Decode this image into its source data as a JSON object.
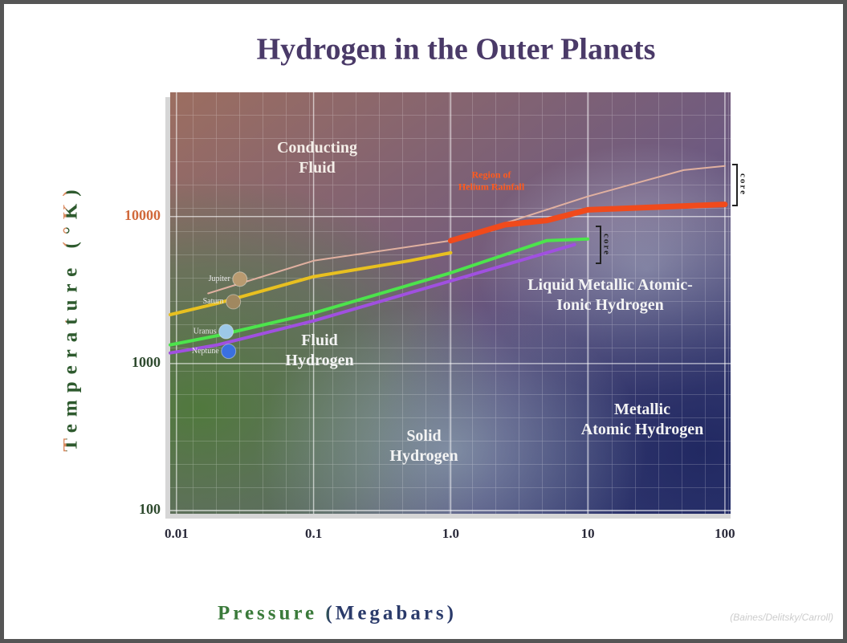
{
  "chart_data": {
    "type": "line",
    "title": "Hydrogen in the Outer Planets",
    "x_label": "Pressure (Megabars)",
    "y_label": "Temperature (°K)",
    "xlog": true,
    "ylog": true,
    "grid": true,
    "xlim": [
      0.009,
      110
    ],
    "ylim": [
      95,
      70000
    ],
    "xticks": [
      0.01,
      0.1,
      {
        "value": 1,
        "label": "1.0"
      },
      10,
      100
    ],
    "yticks": [
      100,
      1000,
      10000
    ],
    "series": [
      {
        "color": "#e0b0a0",
        "width": 2,
        "x": [
          0.017,
          0.1,
          1,
          10,
          50,
          100
        ],
        "values": [
          3000,
          5000,
          6850,
          13700,
          20700,
          22100
        ]
      },
      {
        "color": "#e8c020",
        "width": 4,
        "x": [
          0.009,
          0.02,
          0.1,
          0.5,
          1
        ],
        "values": [
          2150,
          2570,
          3900,
          5000,
          5670
        ]
      },
      {
        "color": "#f04a1c",
        "width": 7,
        "x": [
          1,
          2.5,
          5,
          10,
          100
        ],
        "values": [
          6850,
          8800,
          9400,
          11100,
          12100
        ]
      },
      {
        "color": "#4ce44c",
        "width": 4,
        "x": [
          0.009,
          0.02,
          0.1,
          1,
          5,
          10
        ],
        "values": [
          1340,
          1550,
          2200,
          4140,
          6850,
          7030
        ]
      },
      {
        "color": "#a050e0",
        "width": 4,
        "x": [
          0.009,
          0.02,
          0.1,
          1,
          8
        ],
        "values": [
          1180,
          1340,
          1950,
          3650,
          6440
        ]
      }
    ],
    "planets": [
      {
        "name": "Jupiter",
        "x": 0.029,
        "y": 3750,
        "color": "#b89a70"
      },
      {
        "name": "Saturn",
        "x": 0.026,
        "y": 2630,
        "color": "#a08860"
      },
      {
        "name": "Uranus",
        "x": 0.023,
        "y": 1650,
        "color": "#9cc8e8"
      },
      {
        "name": "Neptune",
        "x": 0.024,
        "y": 1210,
        "color": "#3a70e0"
      }
    ],
    "annotations": [
      {
        "lines": [
          "Conducting",
          "Fluid"
        ]
      },
      {
        "lines": [
          "Region of",
          "Helium Rainfall"
        ]
      },
      {
        "lines": [
          "Liquid Metallic Atomic-",
          "Ionic Hydrogen"
        ]
      },
      {
        "lines": [
          "Fluid",
          "Hydrogen"
        ]
      },
      {
        "lines": [
          "Solid",
          "Hydrogen"
        ]
      },
      {
        "lines": [
          "Metallic",
          "Atomic Hydrogen"
        ]
      },
      {
        "lines": [
          "core"
        ]
      },
      {
        "lines": [
          "core"
        ]
      }
    ],
    "credit": "(Baines/Delitsky/Carroll)"
  }
}
